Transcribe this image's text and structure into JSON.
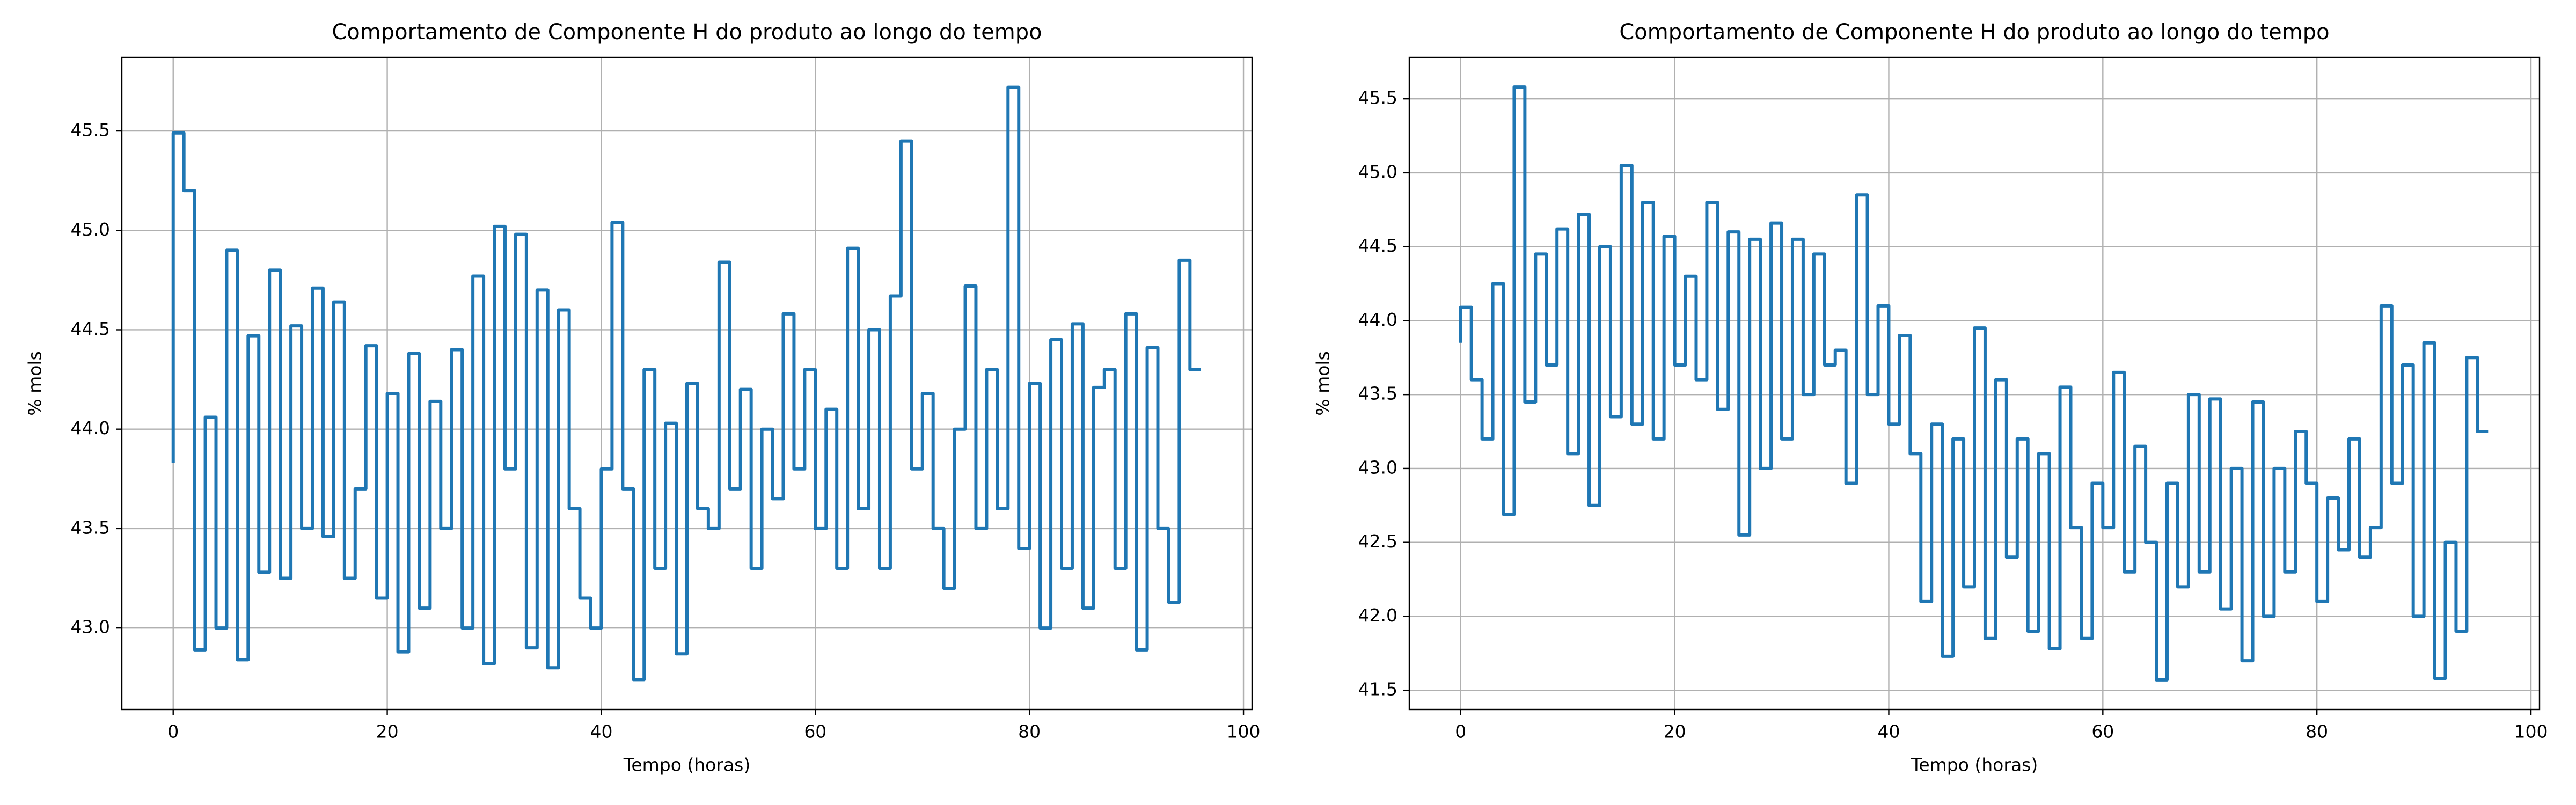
{
  "chart_data": [
    {
      "type": "line",
      "drawstyle": "steps-pre",
      "title": "Comportamento de Componente H do produto ao longo do tempo",
      "xlabel": "Tempo (horas)",
      "ylabel": "% mols",
      "color": "#1f77b4",
      "grid": true,
      "x": [
        0,
        1,
        2,
        3,
        4,
        5,
        6,
        7,
        8,
        9,
        10,
        11,
        12,
        13,
        14,
        15,
        16,
        17,
        18,
        19,
        20,
        21,
        22,
        23,
        24,
        25,
        26,
        27,
        28,
        29,
        30,
        31,
        32,
        33,
        34,
        35,
        36,
        37,
        38,
        39,
        40,
        41,
        42,
        43,
        44,
        45,
        46,
        47,
        48,
        49,
        50,
        51,
        52,
        53,
        54,
        55,
        56,
        57,
        58,
        59,
        60,
        61,
        62,
        63,
        64,
        65,
        66,
        67,
        68,
        69,
        70,
        71,
        72,
        73,
        74,
        75,
        76,
        77,
        78,
        79,
        80,
        81,
        82,
        83,
        84,
        85,
        86,
        87,
        88,
        89,
        90,
        91,
        92,
        93,
        94,
        95,
        96
      ],
      "values": [
        43.83,
        45.49,
        45.2,
        42.89,
        44.06,
        43.0,
        44.9,
        42.84,
        44.47,
        43.28,
        44.8,
        43.25,
        44.52,
        43.5,
        44.71,
        43.46,
        44.64,
        43.25,
        43.7,
        44.42,
        43.15,
        44.18,
        42.88,
        44.38,
        43.1,
        44.14,
        43.5,
        44.4,
        43.0,
        44.77,
        42.82,
        45.02,
        43.8,
        44.98,
        42.9,
        44.7,
        42.8,
        44.6,
        43.6,
        43.15,
        43.0,
        43.8,
        45.04,
        43.7,
        42.74,
        44.3,
        43.3,
        44.03,
        42.87,
        44.23,
        43.6,
        43.5,
        44.84,
        43.7,
        44.2,
        43.3,
        44.0,
        43.65,
        44.58,
        43.8,
        44.3,
        43.5,
        44.1,
        43.3,
        44.91,
        43.6,
        44.5,
        43.3,
        44.67,
        45.45,
        43.8,
        44.18,
        43.5,
        43.2,
        44.0,
        44.72,
        43.5,
        44.3,
        43.6,
        45.72,
        43.4,
        44.23,
        43.0,
        44.45,
        43.3,
        44.53,
        43.1,
        44.21,
        44.3,
        43.3,
        44.58,
        42.89,
        44.41,
        43.5,
        43.13,
        44.85,
        44.3
      ],
      "xlim": [
        -4.8,
        100.8
      ],
      "xticks": [
        0,
        20,
        40,
        60,
        80,
        100
      ],
      "ylim": [
        42.59,
        45.87
      ],
      "yticks": [
        {
          "value": 43,
          "label": "43.0"
        },
        43.5,
        {
          "value": 44,
          "label": "44.0"
        },
        44.5,
        {
          "value": 45,
          "label": "45.0"
        },
        45.5
      ]
    },
    {
      "type": "line",
      "drawstyle": "steps-pre",
      "title": "Comportamento de Componente H do produto ao longo do tempo",
      "xlabel": "Tempo (horas)",
      "ylabel": "% mols",
      "color": "#1f77b4",
      "grid": true,
      "x": [
        0,
        1,
        2,
        3,
        4,
        5,
        6,
        7,
        8,
        9,
        10,
        11,
        12,
        13,
        14,
        15,
        16,
        17,
        18,
        19,
        20,
        21,
        22,
        23,
        24,
        25,
        26,
        27,
        28,
        29,
        30,
        31,
        32,
        33,
        34,
        35,
        36,
        37,
        38,
        39,
        40,
        41,
        42,
        43,
        44,
        45,
        46,
        47,
        48,
        49,
        50,
        51,
        52,
        53,
        54,
        55,
        56,
        57,
        58,
        59,
        60,
        61,
        62,
        63,
        64,
        65,
        66,
        67,
        68,
        69,
        70,
        71,
        72,
        73,
        74,
        75,
        76,
        77,
        78,
        79,
        80,
        81,
        82,
        83,
        84,
        85,
        86,
        87,
        88,
        89,
        90,
        91,
        92,
        93,
        94,
        95,
        96
      ],
      "values": [
        43.85,
        44.09,
        43.6,
        43.2,
        44.25,
        42.69,
        45.58,
        43.45,
        44.45,
        43.7,
        44.62,
        43.1,
        44.72,
        42.75,
        44.5,
        43.35,
        45.05,
        43.3,
        44.8,
        43.2,
        44.57,
        43.7,
        44.3,
        43.6,
        44.8,
        43.4,
        44.6,
        42.55,
        44.55,
        43.0,
        44.66,
        43.2,
        44.55,
        43.5,
        44.45,
        43.7,
        43.8,
        42.9,
        44.85,
        43.5,
        44.1,
        43.3,
        43.9,
        43.1,
        42.1,
        43.3,
        41.73,
        43.2,
        42.2,
        43.95,
        41.85,
        43.6,
        42.4,
        43.2,
        41.9,
        43.1,
        41.78,
        43.55,
        42.6,
        41.85,
        42.9,
        42.6,
        43.65,
        42.3,
        43.15,
        42.5,
        41.57,
        42.9,
        42.2,
        43.5,
        42.3,
        43.47,
        42.05,
        43.0,
        41.7,
        43.45,
        42.0,
        43.0,
        42.3,
        43.25,
        42.9,
        42.1,
        42.8,
        42.45,
        43.2,
        42.4,
        42.6,
        44.1,
        42.9,
        43.7,
        42.0,
        43.85,
        41.58,
        42.5,
        41.9,
        43.75,
        43.25
      ],
      "xlim": [
        -4.8,
        100.8
      ],
      "xticks": [
        0,
        20,
        40,
        60,
        80,
        100
      ],
      "ylim": [
        41.37,
        45.78
      ],
      "yticks": [
        41.5,
        {
          "value": 42,
          "label": "42.0"
        },
        42.5,
        {
          "value": 43,
          "label": "43.0"
        },
        43.5,
        {
          "value": 44,
          "label": "44.0"
        },
        44.5,
        {
          "value": 45,
          "label": "45.0"
        },
        45.5
      ]
    }
  ]
}
